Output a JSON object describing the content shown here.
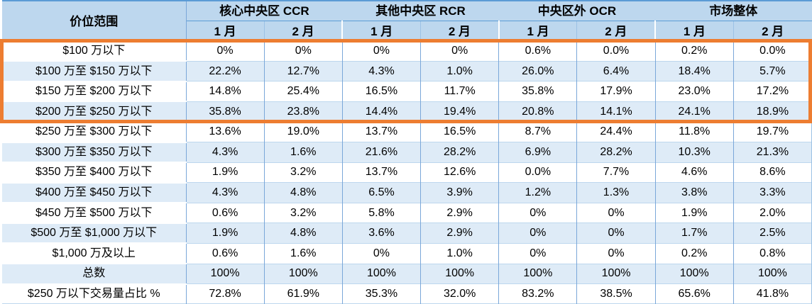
{
  "chart_data": {
    "type": "table",
    "corner_header": "价位范围",
    "column_groups": [
      "核心中央区 CCR",
      "其他中央区 RCR",
      "中央区外 OCR",
      "市场整体"
    ],
    "sub_columns": [
      "1 月",
      "2 月"
    ],
    "rows": [
      {
        "label": "$100 万以下",
        "values": [
          "0%",
          "0%",
          "0%",
          "0%",
          "0.6%",
          "0.0%",
          "0.2%",
          "0.0%"
        ]
      },
      {
        "label": "$100 万至 $150 万以下",
        "values": [
          "22.2%",
          "12.7%",
          "4.3%",
          "1.0%",
          "26.0%",
          "6.4%",
          "18.4%",
          "5.7%"
        ]
      },
      {
        "label": "$150 万至 $200 万以下",
        "values": [
          "14.8%",
          "25.4%",
          "16.5%",
          "11.7%",
          "35.8%",
          "17.9%",
          "23.0%",
          "17.2%"
        ]
      },
      {
        "label": "$200 万至 $250 万以下",
        "values": [
          "35.8%",
          "23.8%",
          "14.4%",
          "19.4%",
          "20.8%",
          "14.1%",
          "24.1%",
          "18.9%"
        ]
      },
      {
        "label": "$250 万至 $300 万以下",
        "values": [
          "13.6%",
          "19.0%",
          "13.7%",
          "16.5%",
          "8.7%",
          "24.4%",
          "11.8%",
          "19.7%"
        ]
      },
      {
        "label": "$300 万至 $350 万以下",
        "values": [
          "4.3%",
          "1.6%",
          "21.6%",
          "28.2%",
          "6.9%",
          "28.2%",
          "10.3%",
          "21.3%"
        ]
      },
      {
        "label": "$350 万至 $400 万以下",
        "values": [
          "1.9%",
          "3.2%",
          "13.7%",
          "12.6%",
          "0.0%",
          "7.7%",
          "4.6%",
          "8.6%"
        ]
      },
      {
        "label": "$400 万至 $450 万以下",
        "values": [
          "4.3%",
          "4.8%",
          "6.5%",
          "3.9%",
          "1.2%",
          "1.3%",
          "3.8%",
          "3.3%"
        ]
      },
      {
        "label": "$450 万至 $500 万以下",
        "values": [
          "0.6%",
          "3.2%",
          "5.8%",
          "2.9%",
          "0%",
          "0%",
          "1.9%",
          "2.0%"
        ]
      },
      {
        "label": "$500 万至 $1,000 万以下",
        "values": [
          "1.9%",
          "4.8%",
          "3.6%",
          "2.9%",
          "0%",
          "0%",
          "1.7%",
          "2.5%"
        ]
      },
      {
        "label": "$1,000 万及以上",
        "values": [
          "0.6%",
          "1.6%",
          "0%",
          "1.0%",
          "0%",
          "0%",
          "0.2%",
          "0.8%"
        ]
      },
      {
        "label": "总数",
        "values": [
          "100%",
          "100%",
          "100%",
          "100%",
          "100%",
          "100%",
          "100%",
          "100%"
        ]
      },
      {
        "label": "$250 万以下交易量占比 %",
        "values": [
          "72.8%",
          "61.9%",
          "35.3%",
          "32.0%",
          "83.2%",
          "38.5%",
          "65.6%",
          "41.8%"
        ]
      }
    ],
    "highlight": {
      "row_start_label": "$100 万以下",
      "row_end_label": "$200 万至 $250 万以下",
      "color": "#ED7D31"
    }
  },
  "colors": {
    "header_bg": "#BDD7EE",
    "row_bg": "#FFFFFF",
    "row_alt_bg": "#DEEBF7",
    "grid_vertical": "#7AA7D9",
    "grid_horizontal": "#BDD7EE",
    "header_rule": "#5B9BD5",
    "highlight_border": "#ED7D31",
    "text": "#000000"
  }
}
